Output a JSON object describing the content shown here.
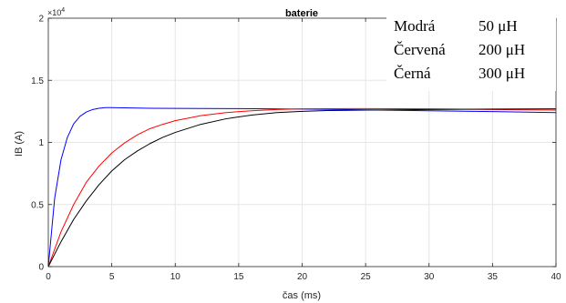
{
  "chart_data": {
    "type": "line",
    "title": "baterie",
    "xlabel": "čas (ms)",
    "ylabel": "IB (A)",
    "xlim": [
      0,
      40
    ],
    "ylim": [
      0,
      20000
    ],
    "y_exponent_label": "×10",
    "y_exponent_power": "4",
    "x_ticks": [
      0,
      5,
      10,
      15,
      20,
      25,
      30,
      35,
      40
    ],
    "x_tick_labels": [
      "0",
      "5",
      "10",
      "15",
      "20",
      "25",
      "30",
      "35",
      "40"
    ],
    "y_ticks": [
      0,
      5000,
      10000,
      15000,
      20000
    ],
    "y_tick_labels": [
      "0",
      "0.5",
      "1",
      "1.5",
      "2"
    ],
    "grid": true,
    "legend_position": "top-right",
    "legend": [
      {
        "name": "Modrá",
        "value": "50 μH",
        "color": "#0000ff"
      },
      {
        "name": "Červená",
        "value": "200 μH",
        "color": "#ff0000"
      },
      {
        "name": "Černá",
        "value": "300 μH",
        "color": "#000000"
      }
    ],
    "series": [
      {
        "color": "#0000ff",
        "x": [
          0,
          0.5,
          1,
          1.5,
          2,
          2.5,
          3,
          3.5,
          4,
          4.5,
          5,
          6,
          8,
          10,
          15,
          20,
          25,
          30,
          35,
          40
        ],
        "y": [
          0,
          5500,
          8600,
          10400,
          11500,
          12100,
          12450,
          12650,
          12750,
          12800,
          12800,
          12780,
          12750,
          12740,
          12720,
          12680,
          12620,
          12550,
          12480,
          12400
        ]
      },
      {
        "color": "#ff0000",
        "x": [
          0,
          1,
          2,
          3,
          4,
          5,
          6,
          7,
          8,
          9,
          10,
          12,
          14,
          16,
          18,
          20,
          22,
          25,
          30,
          35,
          40
        ],
        "y": [
          0,
          2800,
          5000,
          6800,
          8100,
          9150,
          9950,
          10600,
          11100,
          11450,
          11750,
          12150,
          12400,
          12550,
          12650,
          12700,
          12710,
          12720,
          12700,
          12650,
          12600
        ]
      },
      {
        "color": "#000000",
        "x": [
          0,
          1,
          2,
          3,
          4,
          5,
          6,
          7,
          8,
          9,
          10,
          12,
          14,
          16,
          18,
          20,
          22,
          25,
          30,
          35,
          40
        ],
        "y": [
          0,
          2000,
          3800,
          5300,
          6600,
          7700,
          8600,
          9300,
          9900,
          10400,
          10800,
          11450,
          11900,
          12200,
          12400,
          12500,
          12560,
          12600,
          12650,
          12680,
          12700
        ]
      }
    ]
  }
}
